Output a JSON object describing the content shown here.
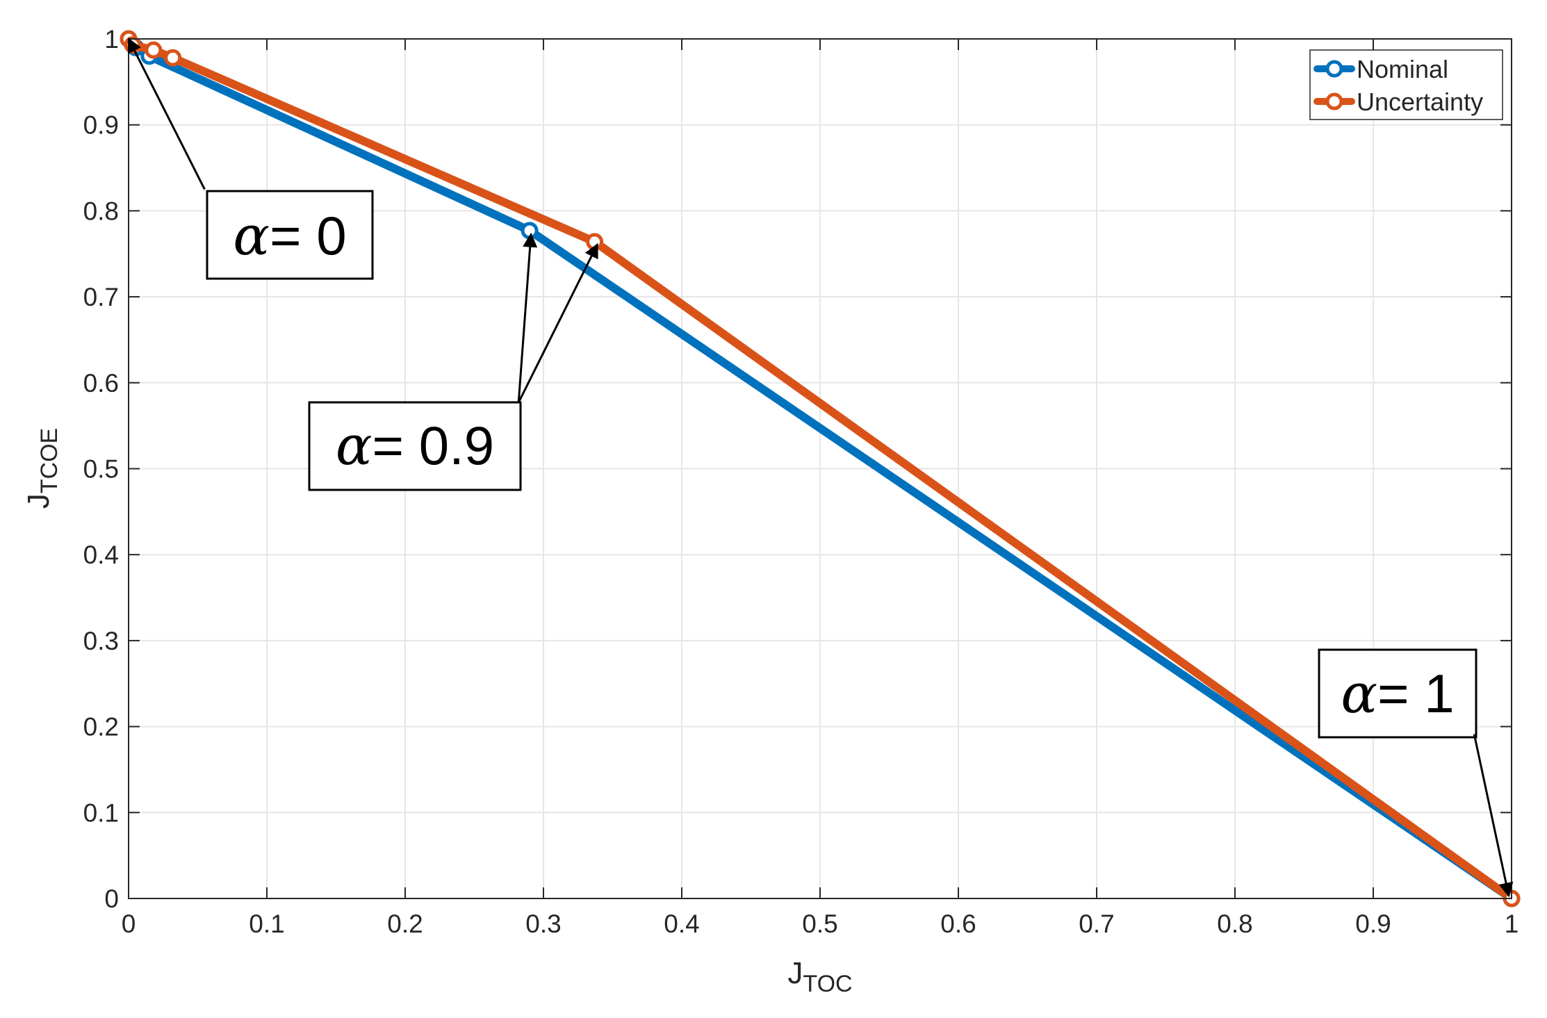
{
  "chart_data": {
    "type": "line",
    "title": "",
    "xlabel": "J",
    "xlabel_sub": "TOC",
    "ylabel": "J",
    "ylabel_sub": "TCOE",
    "xlim": [
      0,
      1
    ],
    "ylim": [
      0,
      1
    ],
    "xticks": [
      0,
      0.1,
      0.2,
      0.3,
      0.4,
      0.5,
      0.6,
      0.7,
      0.8,
      0.9,
      1
    ],
    "yticks": [
      0,
      0.1,
      0.2,
      0.3,
      0.4,
      0.5,
      0.6,
      0.7,
      0.8,
      0.9,
      1
    ],
    "xtick_labels": [
      "0",
      "0.1",
      "0.2",
      "0.3",
      "0.4",
      "0.5",
      "0.6",
      "0.7",
      "0.8",
      "0.9",
      "1"
    ],
    "ytick_labels": [
      "0",
      "0.1",
      "0.2",
      "0.3",
      "0.4",
      "0.5",
      "0.6",
      "0.7",
      "0.8",
      "0.9",
      "1"
    ],
    "grid": true,
    "legend_position": "top-right",
    "series": [
      {
        "name": "Nominal",
        "color": "#0072BD",
        "marker": "circle",
        "points": [
          [
            0.0,
            1.0
          ],
          [
            0.005,
            0.99
          ],
          [
            0.015,
            0.98
          ],
          [
            0.29,
            0.777
          ],
          [
            1.0,
            0.0
          ]
        ]
      },
      {
        "name": "Uncertainty",
        "color": "#D95319",
        "marker": "circle",
        "points": [
          [
            0.0,
            1.0
          ],
          [
            0.003,
            0.993
          ],
          [
            0.018,
            0.987
          ],
          [
            0.032,
            0.978
          ],
          [
            0.337,
            0.764
          ],
          [
            1.0,
            0.0
          ]
        ]
      }
    ],
    "annotations": [
      {
        "alpha": "α",
        "text": "= 0",
        "box_center": [
          0.115,
          0.773
        ],
        "arrows": [
          {
            "from": [
              0.055,
              0.825
            ],
            "to": [
              0.0,
              1.0
            ]
          }
        ]
      },
      {
        "alpha": "α",
        "text": "= 0.9",
        "box_center": [
          0.204,
          0.523
        ],
        "arrows": [
          {
            "from": [
              0.282,
              0.577
            ],
            "to": [
              0.291,
              0.773
            ]
          },
          {
            "from": [
              0.282,
              0.577
            ],
            "to": [
              0.339,
              0.761
            ]
          }
        ]
      },
      {
        "alpha": "α",
        "text": "= 1",
        "box_center": [
          0.922,
          0.253
        ],
        "arrows": [
          {
            "from": [
              0.973,
              0.191
            ],
            "to": [
              0.998,
              0.003
            ]
          }
        ]
      }
    ]
  }
}
